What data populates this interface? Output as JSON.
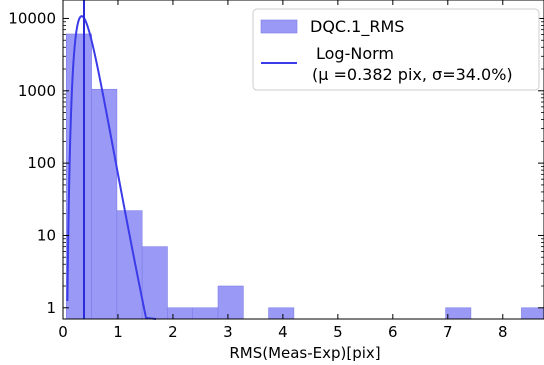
{
  "chart_data": {
    "type": "bar",
    "xlabel": "RMS(Meas-Exp)[pix]",
    "ylabel": "",
    "xlim": [
      0,
      8.75
    ],
    "ylim": [
      0.7,
      18000
    ],
    "yscale": "log",
    "grid": false,
    "legend_position": "top-right",
    "x_ticks": [
      0,
      1,
      2,
      3,
      4,
      5,
      6,
      7,
      8
    ],
    "x_tick_labels": [
      "0",
      "1",
      "2",
      "3",
      "4",
      "5",
      "6",
      "7",
      "8"
    ],
    "y_ticks": [
      1,
      10,
      100,
      1000,
      10000
    ],
    "y_tick_labels": [
      "1",
      "10",
      "100",
      "1000",
      "10000"
    ],
    "bin_edges": [
      0.06,
      0.52,
      0.98,
      1.44,
      1.9,
      2.36,
      2.82,
      3.28,
      3.74,
      4.2,
      4.66,
      5.12,
      5.58,
      6.04,
      6.5,
      6.96,
      7.42,
      7.88,
      8.34,
      8.8
    ],
    "series": [
      {
        "name": "DQC.1_RMS",
        "kind": "histogram",
        "color": "#9a9af6",
        "values": [
          6100,
          1050,
          22,
          7,
          1,
          1,
          2,
          0,
          1,
          0,
          0,
          0,
          0,
          0,
          0,
          1,
          0,
          0,
          1
        ]
      },
      {
        "name": "Log-Norm",
        "kind": "line",
        "color": "#3b3bea",
        "mu": 0.382,
        "sigma": 0.34
      }
    ],
    "vertical_line": {
      "x": 0.382,
      "color": "#2b2bdc"
    },
    "legend": {
      "entries": [
        {
          "label": "DQC.1_RMS"
        },
        {
          "label": "Log-Norm",
          "label_line2": "(μ =0.382 pix, σ=34.0%)"
        }
      ]
    }
  }
}
